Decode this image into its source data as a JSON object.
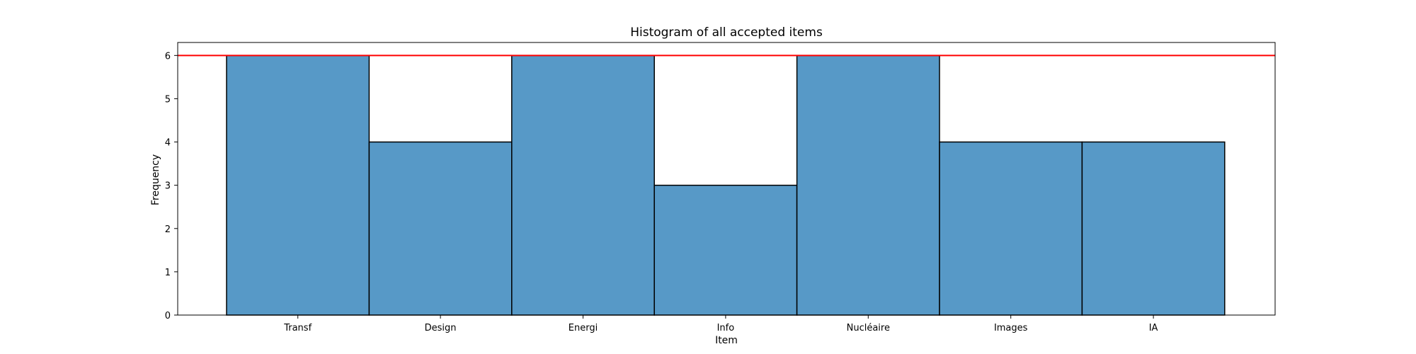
{
  "chart_data": {
    "type": "bar",
    "title": "Histogram of all accepted items",
    "xlabel": "Item",
    "ylabel": "Frequency",
    "categories": [
      "Transf",
      "Design",
      "Energi",
      "Info",
      "Nucléaire",
      "Images",
      "IA"
    ],
    "values": [
      6,
      4,
      6,
      3,
      6,
      4,
      4
    ],
    "ylim": [
      0,
      6.3
    ],
    "yticks": [
      0,
      1,
      2,
      3,
      4,
      5,
      6
    ],
    "reference_line": 6,
    "colors": {
      "bar": "#5799c7",
      "edge": "#000000",
      "reference_line": "#ff0000"
    },
    "grid": false,
    "legend": "none"
  }
}
